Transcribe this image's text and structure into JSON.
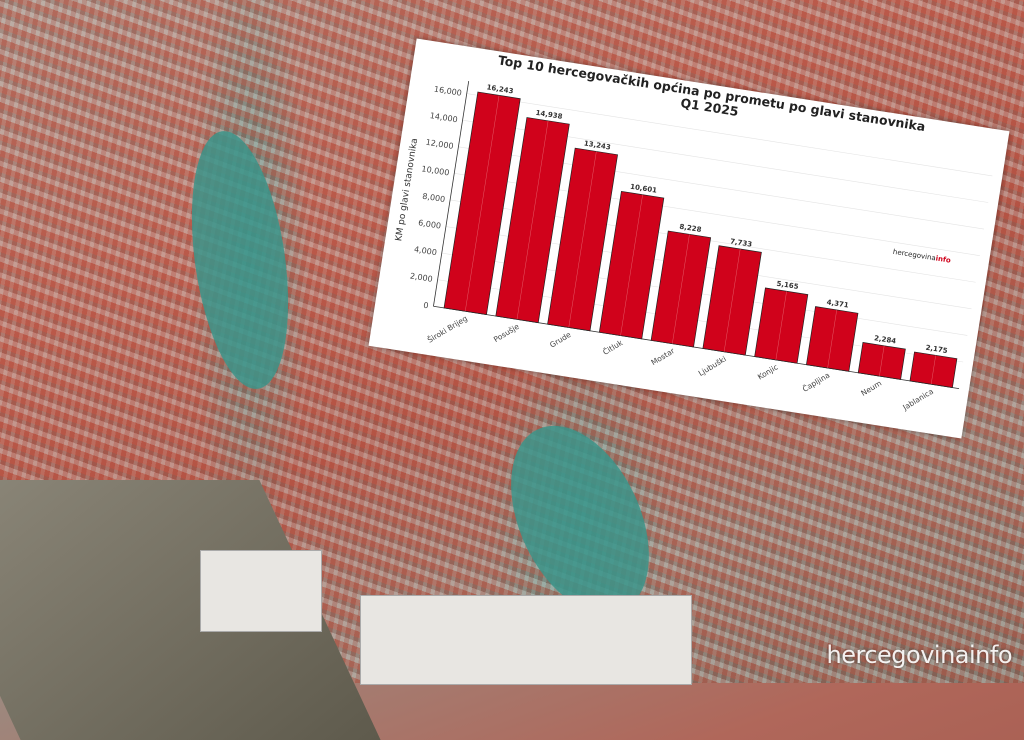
{
  "chart_data": {
    "type": "bar",
    "title": "Top 10 hercegovačkih općina po prometu po glavi stanovnika",
    "subtitle": "Q1 2025",
    "xlabel": "",
    "ylabel": "KM po glavi stanovnika",
    "categories": [
      "Široki Brijeg",
      "Posušje",
      "Grude",
      "Čitluk",
      "Mostar",
      "Ljubuški",
      "Konjic",
      "Čapljina",
      "Neum",
      "Jablanica"
    ],
    "values": [
      16243,
      14938,
      13243,
      10601,
      8228,
      7733,
      5165,
      4371,
      2284,
      2175
    ],
    "data_labels": [
      "16,243",
      "14,938",
      "13,243",
      "10,601",
      "8,228",
      "7,733",
      "5,165",
      "4,371",
      "2,284",
      "2,175"
    ],
    "yticks": [
      "0",
      "2,000",
      "4,000",
      "6,000",
      "8,000",
      "10,000",
      "12,000",
      "14,000",
      "16,000"
    ],
    "ylim": [
      0,
      16500
    ],
    "grid": true,
    "bar_color": "#d0021b"
  },
  "logo": {
    "prefix": "hercegovina",
    "suffix": "info"
  },
  "watermark": "hercegovinainfo"
}
